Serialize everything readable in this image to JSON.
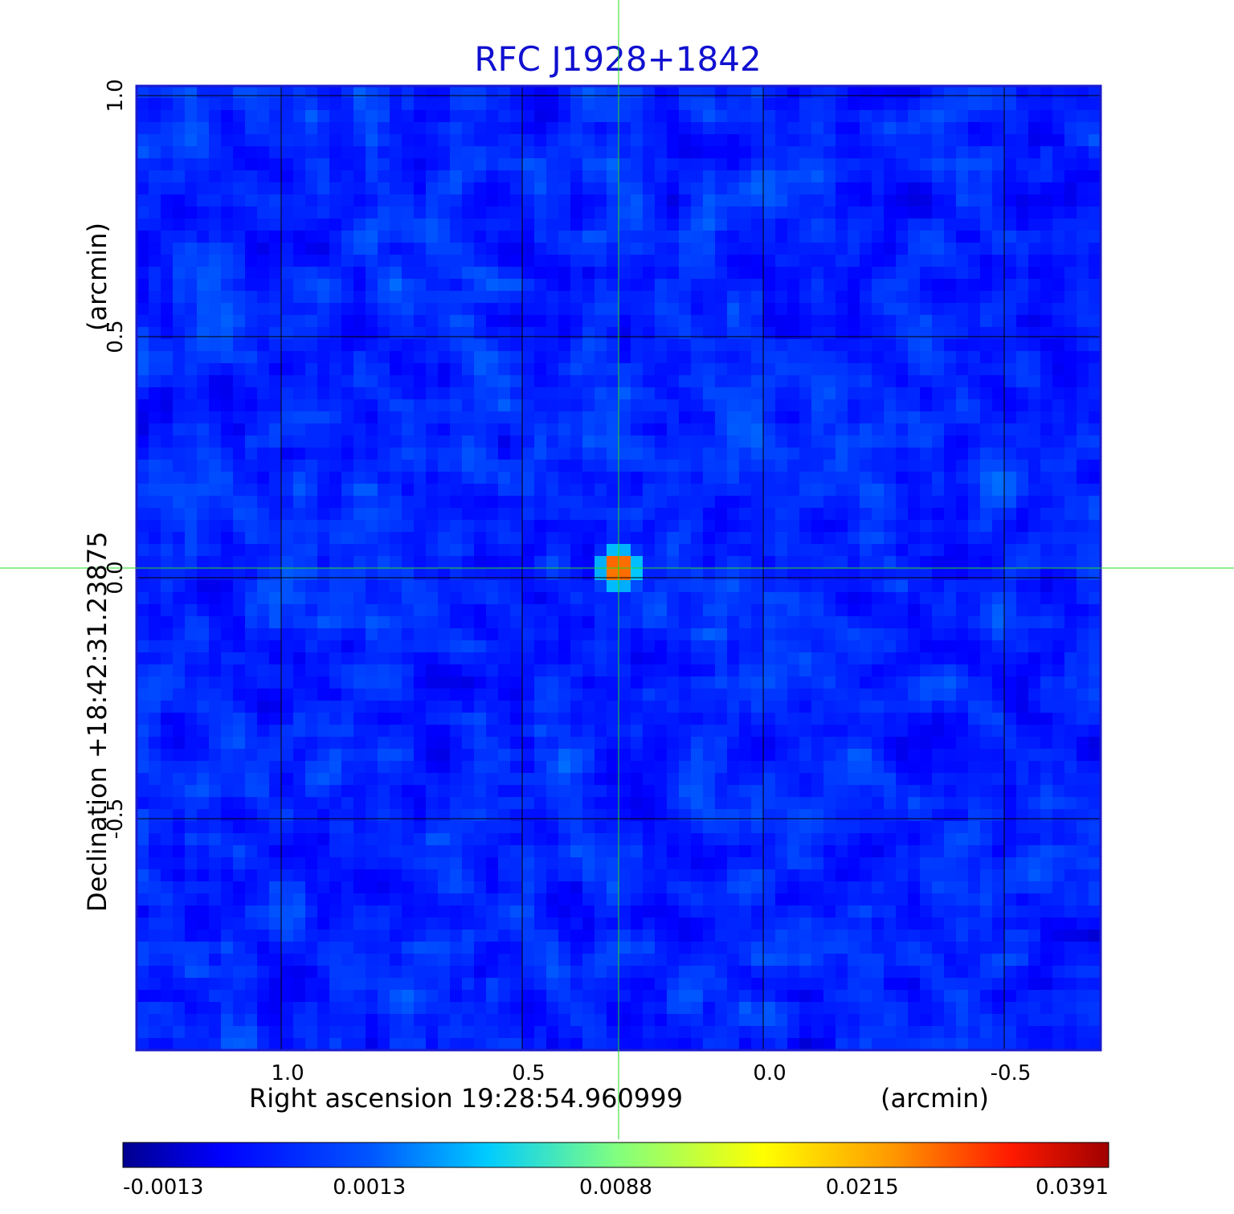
{
  "chart_data": {
    "type": "heatmap",
    "title": "RFC J1928+1842",
    "xlabel": "Right ascension  19:28:54.960999",
    "xunit": "(arcmin)",
    "ylabel": "Declination  +18:42:31.23875",
    "yunit": "(arcmin)",
    "x_ticks": [
      1.0,
      0.5,
      0.0,
      -0.5
    ],
    "x_tick_labels": [
      "1.0",
      "0.5",
      "0.0",
      "-0.5"
    ],
    "y_ticks": [
      1.0,
      0.5,
      0.0,
      -0.5
    ],
    "y_tick_labels": [
      "1.0",
      "0.5",
      "0.0",
      "-0.5"
    ],
    "xlim": [
      1.3,
      -0.7
    ],
    "ylim": [
      -0.98,
      1.02
    ],
    "grid": true,
    "crosshair": {
      "ra_offset_arcmin": 0.3,
      "dec_offset_arcmin": 0.02,
      "color": "#22dd22"
    },
    "source_peak": {
      "ra_offset_arcmin": 0.3,
      "dec_offset_arcmin": 0.02,
      "flux": 0.0391
    },
    "colormap": "jet",
    "colorbar": {
      "tick_values": [
        -0.0013,
        0.0013,
        0.0088,
        0.0215,
        0.0391
      ],
      "tick_labels": [
        "-0.0013",
        "0.0013",
        "0.0088",
        "0.0215",
        "0.0391"
      ]
    },
    "colors": {
      "title": "#1010d0",
      "frame": "#1a1ad0",
      "grid": "#000000",
      "crosshair": "#22dd22"
    }
  }
}
